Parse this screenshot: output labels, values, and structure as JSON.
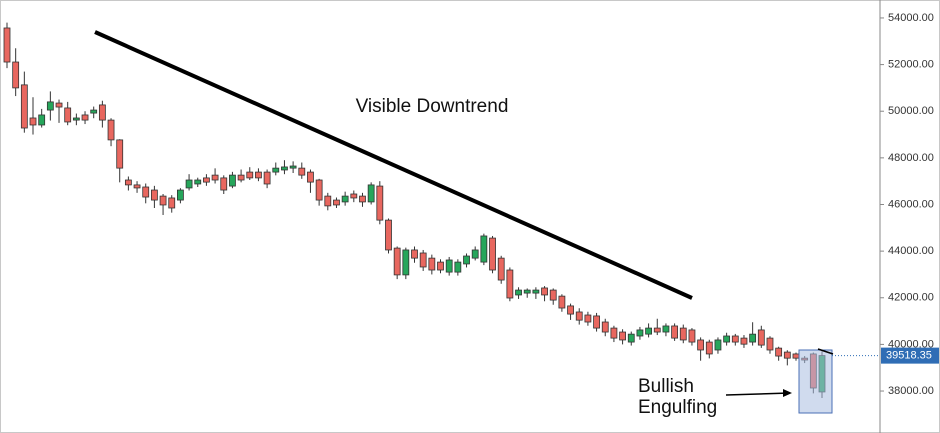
{
  "chart_data": {
    "type": "candlestick",
    "annotation": "Visible Downtrend",
    "pattern_label": [
      "Bullish",
      "Engulfing"
    ],
    "up_color": "#26a65b",
    "down_color": "#e8675f",
    "ylim": [
      36200,
      54770
    ],
    "yticks": [
      {
        "value": 38000,
        "label": "38000.00"
      },
      {
        "value": 40000,
        "label": "40000.00"
      },
      {
        "value": 42000,
        "label": "42000.00"
      },
      {
        "value": 44000,
        "label": "44000.00"
      },
      {
        "value": 46000,
        "label": "46000.00"
      },
      {
        "value": 48000,
        "label": "48000.00"
      },
      {
        "value": 50000,
        "label": "50000.00"
      },
      {
        "value": 52000,
        "label": "52000.00"
      },
      {
        "value": 54000,
        "label": "54000.00"
      }
    ],
    "last_price": 39518.35,
    "open": [
      53570,
      52110,
      51130,
      49710,
      49410,
      50050,
      50350,
      50140,
      49620,
      49840,
      49920,
      50270,
      49620,
      48770,
      47050,
      46840,
      46750,
      46620,
      46360,
      46280,
      46190,
      46710,
      46880,
      47140,
      47260,
      47140,
      46790,
      47260,
      47390,
      47390,
      47390,
      47390,
      47480,
      47560,
      47560,
      47390,
      47050,
      46360,
      46190,
      46110,
      46450,
      46360,
      46110,
      46790,
      45330,
      44130,
      42980,
      44050,
      43920,
      43700,
      43530,
      43100,
      43100,
      43450,
      43700,
      43530,
      44560,
      43700,
      43190,
      42120,
      42200,
      42200,
      42420,
      42330,
      42070,
      41650,
      41390,
      41260,
      41220,
      40960,
      40700,
      40530,
      40100,
      40360,
      40440,
      40700,
      40530,
      40790,
      40700,
      40620,
      40190,
      40100,
      39760,
      40100,
      40360,
      40270,
      40100,
      40620,
      40270,
      39840,
      39670,
      39590,
      39410,
      39590,
      37960
    ],
    "high": [
      53800,
      52700,
      51700,
      50600,
      50100,
      50850,
      50500,
      50400,
      49900,
      50000,
      50200,
      50450,
      49700,
      48800,
      47200,
      47000,
      46900,
      46800,
      46450,
      46400,
      46700,
      47300,
      47150,
      47300,
      47550,
      47250,
      47400,
      47500,
      47600,
      47550,
      47500,
      47800,
      47900,
      47850,
      47800,
      47500,
      47100,
      46500,
      46300,
      46550,
      46600,
      46500,
      46950,
      47000,
      45400,
      44200,
      44150,
      44200,
      44050,
      43850,
      43650,
      43750,
      43650,
      43900,
      44200,
      44750,
      44650,
      43800,
      43300,
      42450,
      42400,
      42450,
      42500,
      42400,
      42150,
      41750,
      41550,
      41400,
      41350,
      41100,
      40800,
      40650,
      40550,
      40750,
      40900,
      41100,
      40900,
      40900,
      40850,
      40700,
      40300,
      40200,
      40300,
      40500,
      40450,
      40400,
      40950,
      40800,
      40350,
      39900,
      39750,
      39650,
      39500,
      39650,
      39700
    ],
    "low": [
      51850,
      50650,
      49080,
      49000,
      49300,
      49600,
      49500,
      49400,
      49400,
      49450,
      49700,
      49300,
      48500,
      46950,
      46600,
      46500,
      46050,
      45850,
      45550,
      45650,
      46050,
      46600,
      46750,
      46800,
      46900,
      46450,
      46700,
      46950,
      47050,
      47000,
      46700,
      47250,
      47300,
      47350,
      47100,
      46500,
      45950,
      45750,
      45850,
      45950,
      46100,
      45900,
      46000,
      45150,
      43900,
      42800,
      42800,
      43500,
      43150,
      43000,
      43050,
      42950,
      42950,
      43300,
      43600,
      43400,
      43050,
      42600,
      41850,
      41950,
      42000,
      41950,
      41850,
      41700,
      41400,
      41050,
      40850,
      40800,
      40550,
      40350,
      40100,
      40000,
      39950,
      40200,
      40300,
      40400,
      40350,
      40150,
      40050,
      39950,
      39300,
      39400,
      39600,
      39950,
      39950,
      39850,
      39950,
      39850,
      39600,
      39300,
      39100,
      39300,
      39200,
      37900,
      37700
    ],
    "close": [
      52110,
      51000,
      49280,
      49410,
      49840,
      50400,
      50180,
      49540,
      49710,
      49620,
      50050,
      49620,
      48770,
      47560,
      46840,
      46710,
      46320,
      46190,
      45980,
      45850,
      46620,
      47050,
      47050,
      46960,
      47050,
      46620,
      47260,
      47050,
      47140,
      47140,
      46880,
      47560,
      47610,
      47650,
      47260,
      46960,
      46190,
      45940,
      45980,
      46360,
      46280,
      46110,
      46840,
      45330,
      44050,
      42980,
      44050,
      43700,
      43320,
      43190,
      43190,
      43620,
      43530,
      43790,
      44050,
      44650,
      43190,
      42760,
      41990,
      42330,
      42330,
      42330,
      42120,
      41900,
      41560,
      41300,
      41040,
      40960,
      40700,
      40530,
      40270,
      40190,
      40440,
      40620,
      40700,
      40530,
      40790,
      40270,
      40190,
      40100,
      39760,
      39590,
      40190,
      40360,
      40100,
      40010,
      40440,
      39970,
      39760,
      39500,
      39410,
      39410,
      39330,
      38130,
      39520
    ]
  }
}
